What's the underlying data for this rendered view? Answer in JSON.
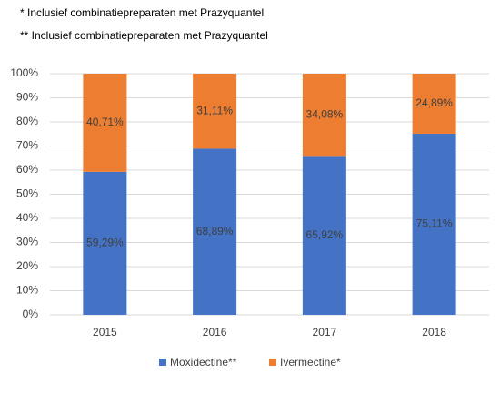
{
  "chart_data": {
    "type": "stacked_bar",
    "notes": [
      "* Inclusief combinatiepreparaten met Prazyquantel",
      "** Inclusief combinatiepreparaten met Prazyquantel"
    ],
    "categories": [
      "2015",
      "2016",
      "2017",
      "2018"
    ],
    "series": [
      {
        "name": "Moxidectine**",
        "color": "#4472c4",
        "values": [
          59.29,
          68.89,
          65.92,
          75.11
        ],
        "value_labels": [
          "59,29%",
          "68,89%",
          "65,92%",
          "75,11%"
        ]
      },
      {
        "name": "Ivermectine*",
        "color": "#ed7d31",
        "values": [
          40.71,
          31.11,
          34.08,
          24.89
        ],
        "value_labels": [
          "40,71%",
          "31,11%",
          "34,08%",
          "24,89%"
        ]
      }
    ],
    "ylim": [
      0,
      100
    ],
    "yticks": [
      {
        "value": 0,
        "label": "0%"
      },
      {
        "value": 10,
        "label": "10%"
      },
      {
        "value": 20,
        "label": "20%"
      },
      {
        "value": 30,
        "label": "30%"
      },
      {
        "value": 40,
        "label": "40%"
      },
      {
        "value": 50,
        "label": "50%"
      },
      {
        "value": 60,
        "label": "60%"
      },
      {
        "value": 70,
        "label": "70%"
      },
      {
        "value": 80,
        "label": "80%"
      },
      {
        "value": 90,
        "label": "90%"
      },
      {
        "value": 100,
        "label": "100%"
      }
    ],
    "grid": true,
    "legend": "bottom"
  }
}
